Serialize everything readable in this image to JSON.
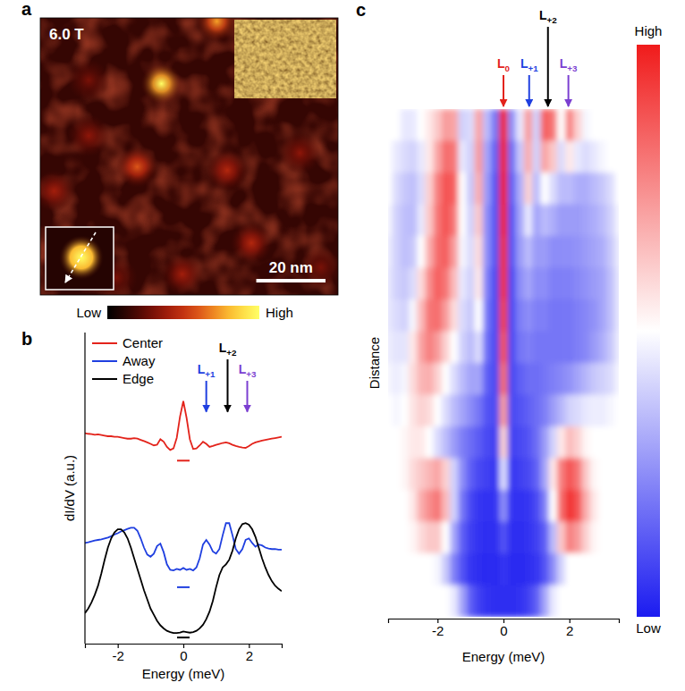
{
  "chart_data": [
    {
      "type": "scatter",
      "panel_label": "a",
      "title": "6.0 T",
      "x": [
        35,
        51,
        28,
        54,
        75,
        14,
        61,
        4,
        41,
        22,
        81,
        14
      ],
      "y": [
        19,
        1,
        43,
        44,
        39,
        34,
        65,
        50,
        74,
        75,
        72,
        18
      ],
      "values": [
        1.0,
        0.75,
        0.6,
        0.45,
        0.35,
        0.35,
        0.45,
        0.4,
        0.4,
        0.3,
        0.3,
        0.3
      ],
      "xlim": [
        0,
        86
      ],
      "ylim": [
        0,
        80
      ],
      "tick_labels": false,
      "zlim": [
        0,
        1
      ],
      "colorbar_labels": [
        "Low",
        "High"
      ],
      "scale_bar": {
        "value": 20,
        "label": "20 nm"
      }
    },
    {
      "type": "line",
      "panel_label": "b",
      "x": [
        -3,
        -2.9,
        -2.8,
        -2.7,
        -2.6,
        -2.5,
        -2.4,
        -2.3,
        -2.2,
        -2.1,
        -2,
        -1.9,
        -1.8,
        -1.7,
        -1.6,
        -1.5,
        -1.4,
        -1.3,
        -1.2,
        -1.1,
        -1,
        -0.9,
        -0.8,
        -0.7,
        -0.6,
        -0.5,
        -0.4,
        -0.3,
        -0.2,
        -0.1,
        0,
        0.1,
        0.2,
        0.3,
        0.4,
        0.5,
        0.6,
        0.7,
        0.8,
        0.9,
        1,
        1.1,
        1.2,
        1.3,
        1.4,
        1.5,
        1.6,
        1.7,
        1.8,
        1.9,
        2,
        2.1,
        2.2,
        2.3,
        2.4,
        2.5,
        2.6,
        2.7,
        2.8,
        2.9,
        3
      ],
      "series": [
        {
          "name": "Center",
          "color": "#e3231b",
          "baseline": 6.0,
          "values": [
            6.9,
            6.88,
            6.87,
            6.85,
            6.86,
            6.84,
            6.82,
            6.8,
            6.8,
            6.78,
            6.78,
            6.76,
            6.74,
            6.72,
            6.72,
            6.74,
            6.72,
            6.68,
            6.64,
            6.6,
            6.55,
            6.5,
            6.52,
            6.7,
            6.62,
            6.45,
            6.35,
            6.4,
            6.75,
            7.45,
            7.95,
            7.4,
            6.7,
            6.38,
            6.4,
            6.5,
            6.62,
            6.55,
            6.45,
            6.48,
            6.52,
            6.55,
            6.58,
            6.6,
            6.57,
            6.52,
            6.48,
            6.45,
            6.43,
            6.42,
            6.48,
            6.55,
            6.6,
            6.63,
            6.66,
            6.68,
            6.7,
            6.72,
            6.74,
            6.76,
            6.78
          ]
        },
        {
          "name": "Away",
          "color": "#1f3fe0",
          "baseline": 1.85,
          "values": [
            3.3,
            3.32,
            3.35,
            3.38,
            3.4,
            3.42,
            3.45,
            3.48,
            3.52,
            3.58,
            3.62,
            3.68,
            3.72,
            3.76,
            3.8,
            3.8,
            3.7,
            3.45,
            3.15,
            2.92,
            2.85,
            2.95,
            3.2,
            3.28,
            3.0,
            2.6,
            2.42,
            2.4,
            2.45,
            2.42,
            2.48,
            2.42,
            2.45,
            2.4,
            2.5,
            2.8,
            3.25,
            3.4,
            3.25,
            3.02,
            2.95,
            3.1,
            3.55,
            3.95,
            3.95,
            3.55,
            3.1,
            2.95,
            3.1,
            3.4,
            3.45,
            3.3,
            3.18,
            3.25,
            3.22,
            3.15,
            3.12,
            3.1,
            3.1,
            3.08,
            3.08
          ]
        },
        {
          "name": "Edge",
          "color": "#000000",
          "baseline": 0.2,
          "values": [
            1.0,
            1.15,
            1.35,
            1.6,
            1.9,
            2.3,
            2.75,
            3.15,
            3.45,
            3.65,
            3.75,
            3.75,
            3.65,
            3.45,
            3.15,
            2.8,
            2.45,
            2.1,
            1.75,
            1.45,
            1.15,
            0.95,
            0.75,
            0.6,
            0.5,
            0.42,
            0.38,
            0.35,
            0.35,
            0.36,
            0.4,
            0.38,
            0.36,
            0.38,
            0.42,
            0.5,
            0.62,
            0.8,
            1.05,
            1.4,
            1.85,
            2.25,
            2.5,
            2.6,
            2.75,
            3.05,
            3.45,
            3.75,
            3.92,
            3.95,
            3.9,
            3.75,
            3.5,
            3.15,
            2.8,
            2.5,
            2.25,
            2.05,
            1.9,
            1.8,
            1.72
          ]
        }
      ],
      "xlim": [
        -3,
        3
      ],
      "ylim": [
        0,
        10.2
      ],
      "xticks": [
        -2,
        0,
        2
      ],
      "xlabel": "Energy (meV)",
      "ylabel": "dI/dV (a.u.)",
      "tick_labels": "x",
      "legend": "upper left",
      "annotations": [
        {
          "text": "L+1",
          "x": 0.7,
          "y": 7.6,
          "color": "#1f3fe0"
        },
        {
          "text": "L+2",
          "x": 1.35,
          "y": 7.6,
          "color": "#000000"
        },
        {
          "text": "L+3",
          "x": 1.95,
          "y": 7.6,
          "color": "#7b3fd1"
        }
      ]
    },
    {
      "type": "heatmap",
      "panel_label": "c",
      "x": [
        -3.5,
        -3.25,
        -3,
        -2.75,
        -2.5,
        -2.25,
        -2,
        -1.75,
        -1.5,
        -1.25,
        -1,
        -0.75,
        -0.5,
        -0.25,
        0,
        0.25,
        0.5,
        0.75,
        1,
        1.25,
        1.5,
        1.75,
        2,
        2.25,
        2.5,
        2.75,
        3,
        3.25,
        3.5
      ],
      "z": [
        [
          0.5,
          0.5,
          0.45,
          0.45,
          0.5,
          0.55,
          0.62,
          0.72,
          0.7,
          0.4,
          0.42,
          0.7,
          0.35,
          0.2,
          1.0,
          0.25,
          0.45,
          0.72,
          0.4,
          0.85,
          0.8,
          0.5,
          0.78,
          0.6,
          0.48,
          0.5,
          0.5,
          0.5,
          0.5
        ],
        [
          0.5,
          0.45,
          0.42,
          0.4,
          0.45,
          0.55,
          0.7,
          0.82,
          0.8,
          0.45,
          0.4,
          0.72,
          0.3,
          0.15,
          1.0,
          0.18,
          0.38,
          0.68,
          0.4,
          0.7,
          0.62,
          0.42,
          0.55,
          0.45,
          0.42,
          0.45,
          0.48,
          0.5,
          0.5
        ],
        [
          0.5,
          0.42,
          0.38,
          0.36,
          0.42,
          0.6,
          0.78,
          0.88,
          0.85,
          0.5,
          0.38,
          0.68,
          0.28,
          0.12,
          1.0,
          0.15,
          0.32,
          0.6,
          0.35,
          0.5,
          0.42,
          0.35,
          0.35,
          0.32,
          0.32,
          0.35,
          0.38,
          0.42,
          0.5
        ],
        [
          0.48,
          0.4,
          0.36,
          0.35,
          0.45,
          0.62,
          0.8,
          0.88,
          0.8,
          0.5,
          0.4,
          0.62,
          0.25,
          0.12,
          0.98,
          0.12,
          0.3,
          0.45,
          0.3,
          0.35,
          0.32,
          0.28,
          0.28,
          0.28,
          0.3,
          0.32,
          0.35,
          0.4,
          0.48
        ],
        [
          0.46,
          0.4,
          0.36,
          0.38,
          0.5,
          0.68,
          0.82,
          0.85,
          0.72,
          0.48,
          0.42,
          0.58,
          0.25,
          0.12,
          0.96,
          0.12,
          0.28,
          0.35,
          0.28,
          0.28,
          0.25,
          0.25,
          0.25,
          0.26,
          0.28,
          0.3,
          0.32,
          0.38,
          0.46
        ],
        [
          0.45,
          0.4,
          0.38,
          0.42,
          0.58,
          0.75,
          0.85,
          0.8,
          0.65,
          0.45,
          0.4,
          0.55,
          0.22,
          0.1,
          0.95,
          0.1,
          0.25,
          0.3,
          0.25,
          0.25,
          0.22,
          0.22,
          0.22,
          0.24,
          0.26,
          0.28,
          0.3,
          0.36,
          0.45
        ],
        [
          0.45,
          0.42,
          0.4,
          0.48,
          0.65,
          0.8,
          0.82,
          0.72,
          0.58,
          0.42,
          0.38,
          0.5,
          0.2,
          0.1,
          0.92,
          0.1,
          0.22,
          0.25,
          0.22,
          0.22,
          0.2,
          0.2,
          0.2,
          0.22,
          0.24,
          0.26,
          0.3,
          0.36,
          0.45
        ],
        [
          0.46,
          0.44,
          0.44,
          0.55,
          0.7,
          0.78,
          0.72,
          0.6,
          0.5,
          0.4,
          0.35,
          0.42,
          0.18,
          0.1,
          0.88,
          0.1,
          0.2,
          0.22,
          0.2,
          0.2,
          0.2,
          0.2,
          0.2,
          0.22,
          0.24,
          0.28,
          0.32,
          0.38,
          0.46
        ],
        [
          0.48,
          0.46,
          0.48,
          0.58,
          0.66,
          0.68,
          0.6,
          0.5,
          0.42,
          0.35,
          0.3,
          0.3,
          0.15,
          0.1,
          0.82,
          0.1,
          0.15,
          0.18,
          0.18,
          0.2,
          0.22,
          0.24,
          0.26,
          0.3,
          0.34,
          0.38,
          0.4,
          0.42,
          0.48
        ],
        [
          0.5,
          0.48,
          0.5,
          0.56,
          0.6,
          0.58,
          0.5,
          0.42,
          0.35,
          0.3,
          0.25,
          0.2,
          0.12,
          0.1,
          0.72,
          0.1,
          0.12,
          0.15,
          0.18,
          0.22,
          0.28,
          0.34,
          0.4,
          0.42,
          0.45,
          0.46,
          0.46,
          0.48,
          0.5
        ],
        [
          0.5,
          0.5,
          0.52,
          0.55,
          0.55,
          0.5,
          0.42,
          0.35,
          0.28,
          0.22,
          0.18,
          0.14,
          0.1,
          0.08,
          0.6,
          0.08,
          0.1,
          0.12,
          0.18,
          0.28,
          0.4,
          0.55,
          0.65,
          0.6,
          0.52,
          0.5,
          0.5,
          0.5,
          0.5
        ],
        [
          0.5,
          0.5,
          0.52,
          0.58,
          0.62,
          0.66,
          0.7,
          0.6,
          0.4,
          0.25,
          0.15,
          0.1,
          0.08,
          0.06,
          0.42,
          0.06,
          0.08,
          0.1,
          0.15,
          0.3,
          0.55,
          0.78,
          0.88,
          0.8,
          0.62,
          0.52,
          0.5,
          0.5,
          0.5
        ],
        [
          0.5,
          0.5,
          0.5,
          0.55,
          0.68,
          0.75,
          0.8,
          0.65,
          0.4,
          0.2,
          0.1,
          0.06,
          0.05,
          0.05,
          0.25,
          0.05,
          0.05,
          0.06,
          0.1,
          0.22,
          0.5,
          0.82,
          0.95,
          0.88,
          0.68,
          0.55,
          0.5,
          0.5,
          0.5
        ],
        [
          0.5,
          0.5,
          0.5,
          0.52,
          0.58,
          0.62,
          0.62,
          0.5,
          0.3,
          0.15,
          0.08,
          0.05,
          0.04,
          0.04,
          0.12,
          0.04,
          0.04,
          0.05,
          0.08,
          0.15,
          0.35,
          0.62,
          0.78,
          0.72,
          0.6,
          0.52,
          0.5,
          0.5,
          0.5
        ],
        [
          0.5,
          0.5,
          0.5,
          0.5,
          0.5,
          0.5,
          0.48,
          0.38,
          0.22,
          0.12,
          0.06,
          0.04,
          0.03,
          0.03,
          0.06,
          0.03,
          0.03,
          0.04,
          0.06,
          0.12,
          0.25,
          0.4,
          0.5,
          0.5,
          0.5,
          0.5,
          0.5,
          0.5,
          0.5
        ],
        [
          0.5,
          0.5,
          0.5,
          0.5,
          0.5,
          0.5,
          0.5,
          0.5,
          0.45,
          0.3,
          0.15,
          0.08,
          0.05,
          0.04,
          0.04,
          0.04,
          0.05,
          0.08,
          0.15,
          0.3,
          0.45,
          0.5,
          0.5,
          0.5,
          0.5,
          0.5,
          0.5,
          0.5,
          0.5
        ]
      ],
      "xlim": [
        -3.5,
        3.5
      ],
      "xticks": [
        -2,
        0,
        2
      ],
      "xlabel": "Energy (meV)",
      "ylabel": "Distance",
      "tick_labels": "x",
      "zlim": [
        0,
        1
      ],
      "colorbar_labels": [
        "Low",
        "High"
      ],
      "annotations": [
        {
          "text": "L0",
          "x": 0,
          "color": "#e3231b"
        },
        {
          "text": "L+1",
          "x": 0.78,
          "color": "#1f3fe0"
        },
        {
          "text": "L+2",
          "x": 1.35,
          "color": "#000000"
        },
        {
          "text": "L+3",
          "x": 1.97,
          "color": "#7b3fd1"
        }
      ]
    }
  ]
}
